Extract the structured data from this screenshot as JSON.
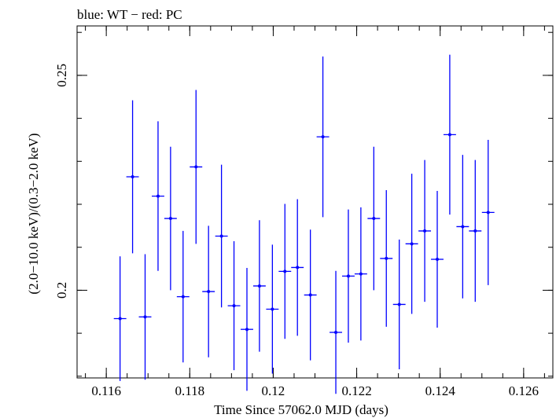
{
  "chart_data": {
    "type": "scatter",
    "title": "blue: WT − red: PC",
    "xlabel": "Time Since 57062.0 MJD (days)",
    "ylabel": "(2.0−10.0 keV)/(0.3−2.0 keV)",
    "xlim": [
      0.1153,
      0.1267
    ],
    "ylim": [
      0.1796,
      0.2615
    ],
    "x_ticks": [
      {
        "value": 0.116,
        "label": "0.116"
      },
      {
        "value": 0.118,
        "label": "0.118"
      },
      {
        "value": 0.12,
        "label": "0.12"
      },
      {
        "value": 0.122,
        "label": "0.122"
      },
      {
        "value": 0.124,
        "label": "0.124"
      },
      {
        "value": 0.126,
        "label": "0.126"
      }
    ],
    "y_ticks": [
      {
        "value": 0.2,
        "label": "0.2"
      },
      {
        "value": 0.25,
        "label": "0.25"
      }
    ],
    "x_minor_step": 0.0005,
    "y_minor_step": 0.01,
    "grid": false,
    "series": [
      {
        "color": "#0000ff",
        "points": [
          {
            "x": 0.11633,
            "xerr": 0.00015,
            "y": 0.1934,
            "yerr": 0.0145
          },
          {
            "x": 0.11663,
            "xerr": 0.00015,
            "y": 0.2264,
            "yerr": 0.0178
          },
          {
            "x": 0.11693,
            "xerr": 0.00015,
            "y": 0.1938,
            "yerr": 0.0146
          },
          {
            "x": 0.11724,
            "xerr": 0.00015,
            "y": 0.2219,
            "yerr": 0.0174
          },
          {
            "x": 0.11754,
            "xerr": 0.00015,
            "y": 0.2167,
            "yerr": 0.0167
          },
          {
            "x": 0.11784,
            "xerr": 0.00015,
            "y": 0.1985,
            "yerr": 0.0153
          },
          {
            "x": 0.11815,
            "xerr": 0.00015,
            "y": 0.2287,
            "yerr": 0.0179
          },
          {
            "x": 0.11845,
            "xerr": 0.00015,
            "y": 0.1997,
            "yerr": 0.0153
          },
          {
            "x": 0.11876,
            "xerr": 0.00015,
            "y": 0.2126,
            "yerr": 0.0166
          },
          {
            "x": 0.11906,
            "xerr": 0.00015,
            "y": 0.1964,
            "yerr": 0.015
          },
          {
            "x": 0.11937,
            "xerr": 0.00015,
            "y": 0.1909,
            "yerr": 0.0143
          },
          {
            "x": 0.11967,
            "xerr": 0.00015,
            "y": 0.201,
            "yerr": 0.0153
          },
          {
            "x": 0.11998,
            "xerr": 0.00015,
            "y": 0.1956,
            "yerr": 0.015
          },
          {
            "x": 0.12028,
            "xerr": 0.00015,
            "y": 0.2044,
            "yerr": 0.0157
          },
          {
            "x": 0.12058,
            "xerr": 0.00015,
            "y": 0.2053,
            "yerr": 0.0159
          },
          {
            "x": 0.12089,
            "xerr": 0.00015,
            "y": 0.1989,
            "yerr": 0.0152
          },
          {
            "x": 0.12119,
            "xerr": 0.00015,
            "y": 0.2357,
            "yerr": 0.0187
          },
          {
            "x": 0.1215,
            "xerr": 0.00015,
            "y": 0.1902,
            "yerr": 0.0143
          },
          {
            "x": 0.1218,
            "xerr": 0.00015,
            "y": 0.2033,
            "yerr": 0.0155
          },
          {
            "x": 0.1221,
            "xerr": 0.00015,
            "y": 0.2038,
            "yerr": 0.0155
          },
          {
            "x": 0.12241,
            "xerr": 0.00015,
            "y": 0.2167,
            "yerr": 0.0167
          },
          {
            "x": 0.12271,
            "xerr": 0.00015,
            "y": 0.2074,
            "yerr": 0.0159
          },
          {
            "x": 0.12302,
            "xerr": 0.00015,
            "y": 0.1967,
            "yerr": 0.0151
          },
          {
            "x": 0.12332,
            "xerr": 0.00015,
            "y": 0.2108,
            "yerr": 0.0163
          },
          {
            "x": 0.12363,
            "xerr": 0.00015,
            "y": 0.2138,
            "yerr": 0.0165
          },
          {
            "x": 0.12393,
            "xerr": 0.00015,
            "y": 0.2072,
            "yerr": 0.0159
          },
          {
            "x": 0.12423,
            "xerr": 0.00015,
            "y": 0.2362,
            "yerr": 0.0186
          },
          {
            "x": 0.12454,
            "xerr": 0.00015,
            "y": 0.2148,
            "yerr": 0.0167
          },
          {
            "x": 0.12484,
            "xerr": 0.00015,
            "y": 0.2138,
            "yerr": 0.0165
          },
          {
            "x": 0.12515,
            "xerr": 0.00015,
            "y": 0.2181,
            "yerr": 0.0169
          }
        ]
      }
    ]
  }
}
